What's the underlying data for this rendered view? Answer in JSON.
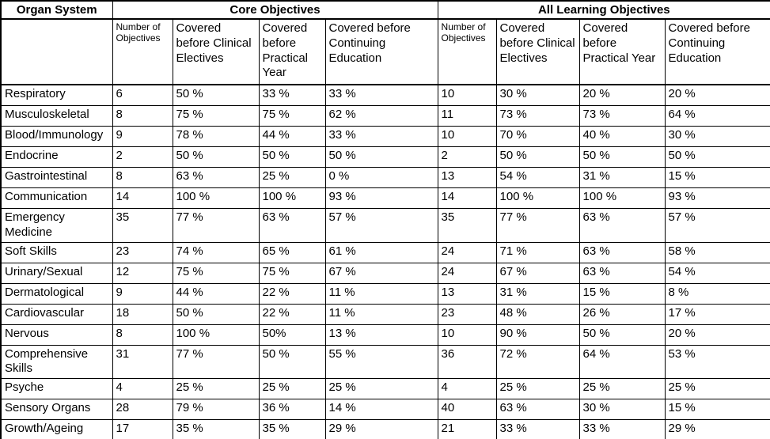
{
  "colors": {
    "background": "#ffffff",
    "border": "#000000",
    "text": "#000000"
  },
  "chart_data": {
    "type": "table",
    "corner_header": "Organ System",
    "column_groups": [
      {
        "label": "Core Objectives",
        "span": 4
      },
      {
        "label": "All Learning Objectives",
        "span": 4
      }
    ],
    "sub_columns": [
      "Number of Objectives",
      "Covered before Clinical Electives",
      "Covered before Practical Year",
      "Covered before Continuing Education",
      "Number of Objectives",
      "Covered before Clinical Electives",
      "Covered before Practical Year",
      "Covered before Continuing Education"
    ],
    "rows": [
      [
        "Respiratory",
        "6",
        "50 %",
        "33 %",
        "33 %",
        "10",
        "30 %",
        "20 %",
        "20 %"
      ],
      [
        "Musculoskeletal",
        "8",
        "75 %",
        "75 %",
        "62 %",
        "11",
        "73 %",
        "73 %",
        "64 %"
      ],
      [
        "Blood/Immunology",
        "9",
        "78 %",
        "44 %",
        "33 %",
        "10",
        "70 %",
        "40 %",
        "30 %"
      ],
      [
        "Endocrine",
        "2",
        "50 %",
        "50 %",
        "50 %",
        "2",
        "50 %",
        "50 %",
        "50 %"
      ],
      [
        "Gastrointestinal",
        "8",
        "63 %",
        "25 %",
        "0 %",
        "13",
        "54 %",
        "31 %",
        "15 %"
      ],
      [
        "Communication",
        "14",
        "100 %",
        "100 %",
        "93 %",
        "14",
        "100 %",
        "100 %",
        "93 %"
      ],
      [
        "Emergency Medicine",
        "35",
        "77 %",
        "63 %",
        "57 %",
        "35",
        "77 %",
        "63 %",
        "57 %"
      ],
      [
        "Soft Skills",
        "23",
        "74 %",
        "65 %",
        "61 %",
        "24",
        "71 %",
        "63 %",
        "58 %"
      ],
      [
        "Urinary/Sexual",
        "12",
        "75 %",
        "75 %",
        "67 %",
        "24",
        "67 %",
        "63 %",
        "54 %"
      ],
      [
        "Dermatological",
        "9",
        "44 %",
        "22 %",
        "11 %",
        "13",
        "31 %",
        "15 %",
        "8 %"
      ],
      [
        "Cardiovascular",
        "18",
        "50 %",
        "22 %",
        "11 %",
        "23",
        "48 %",
        "26 %",
        "17 %"
      ],
      [
        "Nervous",
        "8",
        "100 %",
        "50%",
        "13 %",
        "10",
        "90 %",
        "50 %",
        "20 %"
      ],
      [
        "Comprehensive Skills",
        "31",
        "77 %",
        "50 %",
        "55 %",
        "36",
        "72 %",
        "64 %",
        "53 %"
      ],
      [
        "Psyche",
        "4",
        "25 %",
        "25 %",
        "25 %",
        "4",
        "25 %",
        "25 %",
        "25 %"
      ],
      [
        "Sensory Organs",
        "28",
        "79 %",
        "36 %",
        "14 %",
        "40",
        "63 %",
        "30 %",
        "15 %"
      ],
      [
        "Growth/Ageing",
        "17",
        "35 %",
        "35 %",
        "29 %",
        "21",
        "33 %",
        "33 %",
        "29 %"
      ]
    ]
  }
}
